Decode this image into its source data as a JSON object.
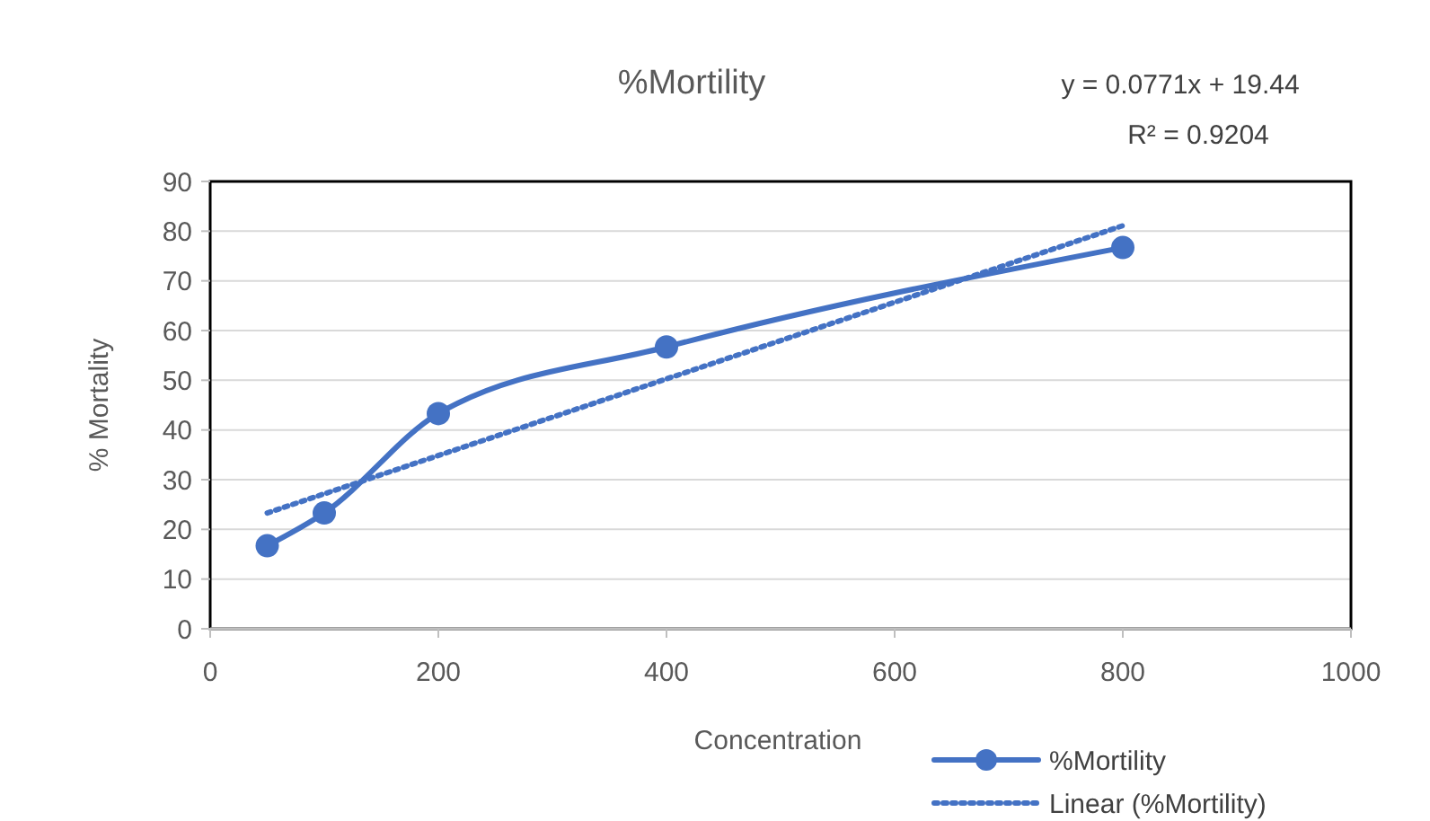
{
  "chart_data": {
    "type": "line",
    "title": "%Mortility",
    "xlabel": "Concentration",
    "ylabel": "% Mortality",
    "x": [
      50,
      100,
      200,
      400,
      800
    ],
    "series": [
      {
        "name": "%Mortility",
        "color": "#4472c4",
        "values": [
          16.7,
          23.3,
          43.3,
          56.7,
          76.7
        ],
        "marker": "circle",
        "line_style": "solid"
      },
      {
        "name": "Linear (%Mortility)",
        "color": "#4472c4",
        "type": "line",
        "x": [
          50,
          800
        ],
        "values": [
          23.3,
          81.1
        ],
        "marker": "none",
        "line_style": "dotted"
      }
    ],
    "annotations": [
      "y = 0.0771x + 19.44",
      "R² = 0.9204"
    ],
    "xlim": [
      0,
      1000
    ],
    "xticks": [
      0,
      200,
      400,
      600,
      800,
      1000
    ],
    "ylim": [
      0,
      90
    ],
    "yticks": [
      0,
      10,
      20,
      30,
      40,
      50,
      60,
      70,
      80,
      90
    ],
    "grid": "y",
    "legend": "bottom right"
  }
}
